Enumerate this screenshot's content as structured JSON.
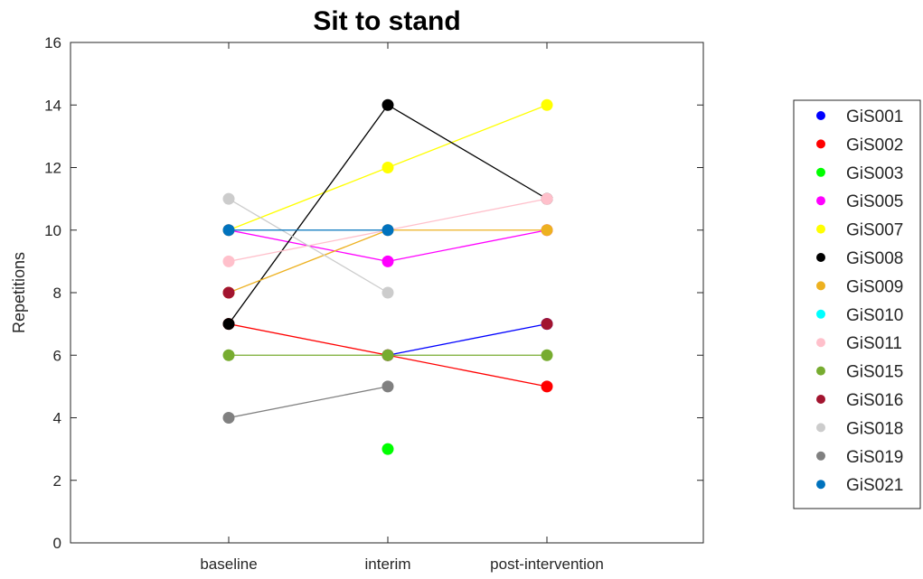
{
  "chart_data": {
    "type": "line",
    "title": "Sit to stand",
    "xlabel": "",
    "ylabel": "Repetitions",
    "categories": [
      "baseline",
      "interim",
      "post-intervention"
    ],
    "ylim": [
      0,
      16
    ],
    "yticks": [
      "0",
      "2",
      "4",
      "6",
      "8",
      "10",
      "12",
      "14",
      "16"
    ],
    "grid": false,
    "legend_position": "right",
    "series": [
      {
        "name": "GiS001",
        "color": "#0000ff",
        "values": [
          null,
          6,
          7
        ]
      },
      {
        "name": "GiS002",
        "color": "#ff0000",
        "values": [
          7,
          6,
          5
        ]
      },
      {
        "name": "GiS003",
        "color": "#00ff00",
        "values": [
          null,
          3,
          null
        ]
      },
      {
        "name": "GiS005",
        "color": "#ff00ff",
        "values": [
          10,
          9,
          10
        ]
      },
      {
        "name": "GiS007",
        "color": "#ffff00",
        "values": [
          10,
          12,
          14
        ]
      },
      {
        "name": "GiS008",
        "color": "#000000",
        "values": [
          7,
          14,
          11
        ]
      },
      {
        "name": "GiS009",
        "color": "#edb120",
        "values": [
          8,
          10,
          10
        ]
      },
      {
        "name": "GiS010",
        "color": "#00ffff",
        "values": [
          null,
          null,
          null
        ]
      },
      {
        "name": "GiS011",
        "color": "#ffc0cb",
        "values": [
          9,
          10,
          11
        ]
      },
      {
        "name": "GiS015",
        "color": "#77ac30",
        "values": [
          6,
          6,
          6
        ]
      },
      {
        "name": "GiS016",
        "color": "#a2142f",
        "values": [
          8,
          null,
          7
        ]
      },
      {
        "name": "GiS018",
        "color": "#cccccc",
        "values": [
          11,
          8,
          null
        ]
      },
      {
        "name": "GiS019",
        "color": "#808080",
        "values": [
          4,
          5,
          null
        ]
      },
      {
        "name": "GiS021",
        "color": "#0072bd",
        "values": [
          10,
          10,
          null
        ]
      }
    ]
  }
}
